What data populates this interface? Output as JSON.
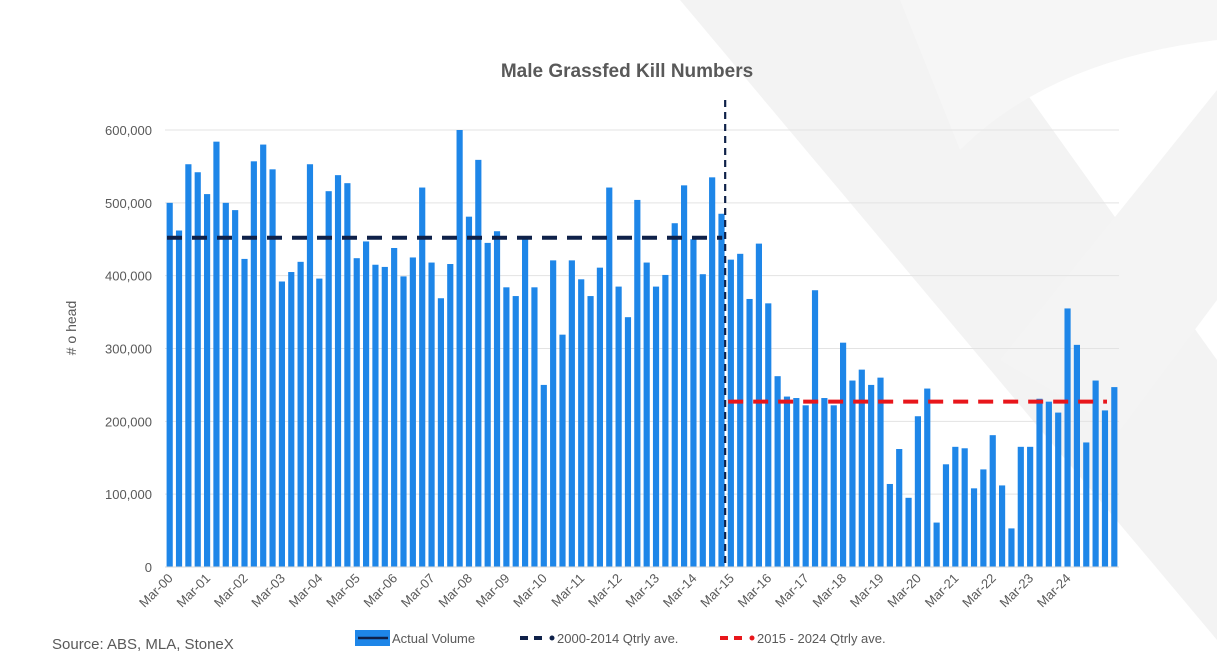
{
  "chart_data": {
    "type": "bar",
    "title": "Male Grassfed Kill Numbers",
    "ylabel": "# o head",
    "xlabel": "",
    "ylim": [
      0,
      600000
    ],
    "yticks": [
      "0",
      "100,000",
      "200,000",
      "300,000",
      "400,000",
      "500,000",
      "600,000"
    ],
    "xtick_labels": [
      "Mar-00",
      "Mar-01",
      "Mar-02",
      "Mar-03",
      "Mar-04",
      "Mar-05",
      "Mar-06",
      "Mar-07",
      "Mar-08",
      "Mar-09",
      "Mar-10",
      "Mar-11",
      "Mar-12",
      "Mar-13",
      "Mar-14",
      "Mar-15",
      "Mar-16",
      "Mar-17",
      "Mar-18",
      "Mar-19",
      "Mar-20",
      "Mar-21",
      "Mar-22",
      "Mar-23",
      "Mar-24"
    ],
    "legend_position": "bottom",
    "grid": true,
    "series": [
      {
        "name": "Actual Volume",
        "color": "#1e86e8",
        "values": [
          500000,
          462000,
          553000,
          542000,
          512000,
          584000,
          500000,
          490000,
          423000,
          557000,
          580000,
          546000,
          392000,
          405000,
          419000,
          553000,
          396000,
          516000,
          538000,
          527000,
          424000,
          447000,
          415000,
          412000,
          438000,
          399000,
          425000,
          521000,
          418000,
          369000,
          416000,
          600000,
          481000,
          559000,
          445000,
          461000,
          384000,
          372000,
          452000,
          384000,
          250000,
          421000,
          319000,
          421000,
          395000,
          372000,
          411000,
          521000,
          385000,
          343000,
          504000,
          418000,
          385000,
          401000,
          472000,
          524000,
          450000,
          402000,
          535000,
          485000,
          422000,
          430000,
          368000,
          444000,
          362000,
          262000,
          234000,
          232000,
          222000,
          380000,
          232000,
          222000,
          308000,
          256000,
          271000,
          250000,
          260000,
          114000,
          162000,
          95000,
          207000,
          245000,
          61000,
          141000,
          165000,
          163000,
          108000,
          134000,
          181000,
          112000,
          53000,
          165000,
          165000,
          231000,
          227000,
          212000,
          355000,
          305000,
          171000,
          256000,
          215000,
          247000
        ]
      },
      {
        "name": "2000-2014 Qtrly ave.",
        "color": "#0f2149",
        "type": "line",
        "dash": true,
        "x_range": [
          "Mar-00",
          "Mar-15"
        ],
        "value": 452000
      },
      {
        "name": "2015 - 2024 Qtrly ave.",
        "color": "#e8161b",
        "type": "line",
        "dash": true,
        "x_range": [
          "Mar-15",
          "Jun-25"
        ],
        "value": 227000
      }
    ],
    "annotations": [
      {
        "type": "vertical-dashed-line",
        "at": "Mar-15",
        "color": "#0f2149"
      }
    ]
  },
  "source_text": "Source: ABS, MLA, StoneX"
}
